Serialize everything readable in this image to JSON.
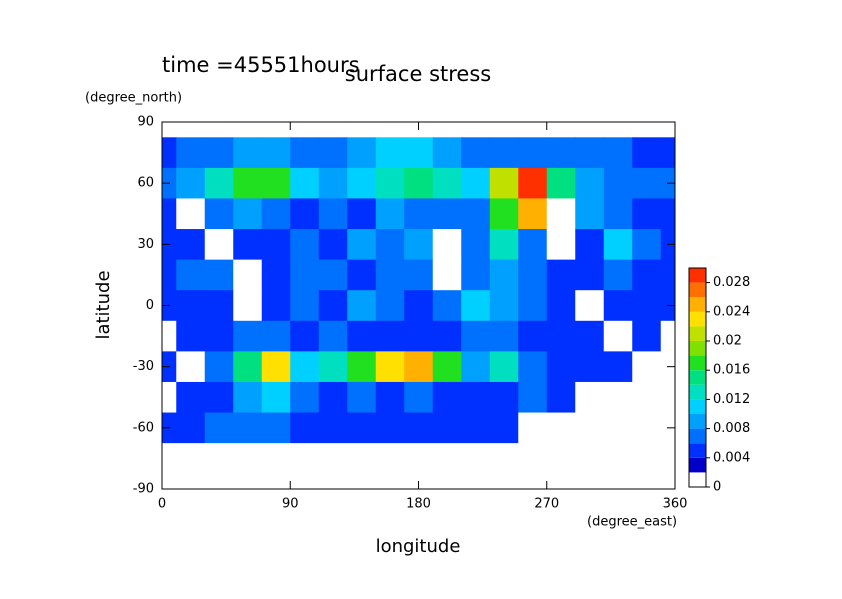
{
  "chart_data": {
    "type": "contour",
    "title": "surface stress",
    "annotation": "time =45551hours",
    "x_label": "longitude",
    "x_unit": "(degree_east)",
    "y_label": "latitude",
    "y_unit": "(degree_north)",
    "xlim": [
      0,
      360
    ],
    "xticks": [
      0,
      90,
      180,
      270,
      360
    ],
    "ylim": [
      -90,
      90
    ],
    "yticks": [
      -90,
      -60,
      -30,
      0,
      30,
      60,
      90
    ],
    "x": [
      0,
      20,
      40,
      60,
      80,
      100,
      120,
      140,
      160,
      180,
      200,
      220,
      240,
      260,
      280,
      300,
      320,
      340,
      360
    ],
    "y": [
      90,
      75,
      60,
      45,
      30,
      15,
      0,
      -15,
      -30,
      -45,
      -60,
      -75,
      -90
    ],
    "z": [
      [
        0,
        0,
        0,
        0,
        0,
        0,
        0,
        0,
        0,
        0,
        0,
        0,
        0,
        0,
        0,
        0,
        0,
        0,
        0
      ],
      [
        0.004,
        0.006,
        0.006,
        0.008,
        0.008,
        0.006,
        0.006,
        0.008,
        0.01,
        0.01,
        0.008,
        0.006,
        0.006,
        0.006,
        0.006,
        0.006,
        0.006,
        0.004,
        0.004
      ],
      [
        0.006,
        0.008,
        0.012,
        0.016,
        0.016,
        0.01,
        0.008,
        0.01,
        0.012,
        0.014,
        0.012,
        0.01,
        0.02,
        0.03,
        0.014,
        0.008,
        0.006,
        0.006,
        0.006
      ],
      [
        0.004,
        0,
        0.006,
        0.008,
        0.006,
        0.004,
        0.006,
        0.004,
        0.008,
        0.006,
        0.006,
        0.006,
        0.016,
        0.024,
        0,
        0.008,
        0.006,
        0.004,
        0.004
      ],
      [
        0.004,
        0.004,
        0,
        0.004,
        0.004,
        0.006,
        0.004,
        0.008,
        0.006,
        0.008,
        0,
        0.006,
        0.012,
        0.006,
        0,
        0.004,
        0.01,
        0.006,
        0.004
      ],
      [
        0.004,
        0.006,
        0.006,
        0,
        0.004,
        0.006,
        0.006,
        0.004,
        0.006,
        0.006,
        0,
        0.006,
        0.008,
        0.006,
        0.004,
        0.004,
        0.006,
        0.004,
        0.004
      ],
      [
        0.004,
        0.004,
        0.004,
        0,
        0.004,
        0.006,
        0.004,
        0.008,
        0.006,
        0.004,
        0.006,
        0.01,
        0.008,
        0.006,
        0.004,
        0,
        0.004,
        0.004,
        0.004
      ],
      [
        0,
        0.004,
        0.004,
        0.006,
        0.006,
        0.004,
        0.006,
        0.004,
        0.004,
        0.004,
        0.004,
        0.006,
        0.006,
        0.004,
        0.004,
        0.004,
        0,
        0.004,
        0
      ],
      [
        0.004,
        0,
        0.006,
        0.014,
        0.022,
        0.01,
        0.012,
        0.016,
        0.022,
        0.024,
        0.016,
        0.008,
        0.012,
        0.006,
        0.004,
        0.004,
        0.004,
        0,
        0
      ],
      [
        0,
        0.004,
        0.004,
        0.008,
        0.01,
        0.006,
        0.004,
        0.006,
        0.004,
        0.006,
        0.004,
        0.004,
        0.004,
        0.006,
        0.004,
        0,
        0,
        0,
        0
      ],
      [
        0.004,
        0.004,
        0.006,
        0.006,
        0.006,
        0.004,
        0.004,
        0.004,
        0.004,
        0.004,
        0.004,
        0.004,
        0.004,
        0,
        0,
        0,
        0,
        0,
        0
      ],
      [
        0,
        0,
        0,
        0,
        0,
        0,
        0,
        0,
        0,
        0,
        0,
        0,
        0,
        0,
        0,
        0,
        0,
        0,
        0
      ],
      [
        0,
        0,
        0,
        0,
        0,
        0,
        0,
        0,
        0,
        0,
        0,
        0,
        0,
        0,
        0,
        0,
        0,
        0,
        0
      ]
    ],
    "colorbar": {
      "levels": [
        0,
        0.002,
        0.004,
        0.006,
        0.008,
        0.01,
        0.012,
        0.014,
        0.016,
        0.018,
        0.02,
        0.022,
        0.024,
        0.026,
        0.028,
        0.03
      ],
      "colors": [
        "#ffffff",
        "#0000c8",
        "#0030ff",
        "#0070ff",
        "#00a0ff",
        "#00d0ff",
        "#00e0c0",
        "#00e080",
        "#20e020",
        "#80e000",
        "#c0e000",
        "#ffe000",
        "#ffb000",
        "#ff7000",
        "#ff3000"
      ],
      "ticks": [
        0,
        0.004,
        0.008,
        0.012,
        0.016,
        0.02,
        0.024,
        0.028
      ]
    }
  }
}
